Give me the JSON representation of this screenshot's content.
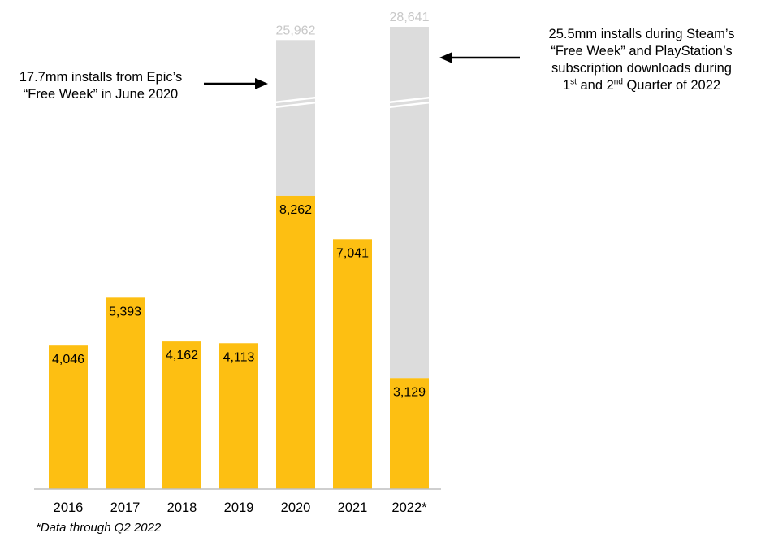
{
  "chart_data": {
    "type": "bar",
    "categories": [
      "2016",
      "2017",
      "2018",
      "2019",
      "2020",
      "2021",
      "2022*"
    ],
    "series": [
      {
        "values": [
          4046,
          5393,
          4162,
          4113,
          8262,
          7041,
          3129
        ]
      }
    ],
    "totals": [
      null,
      null,
      null,
      null,
      25962,
      null,
      28641
    ],
    "data_labels": [
      "4,046",
      "5,393",
      "4,162",
      "4,113",
      "8,262",
      "7,041",
      "3,129"
    ],
    "total_labels": [
      "",
      "",
      "",
      "",
      "25,962",
      "",
      "28,641"
    ],
    "axis_break": true,
    "grid": false,
    "legend": "none",
    "colors": {
      "base": "#FDBF12",
      "extra": "#DCDCDC",
      "total_label": "#C8C8C8",
      "axis": "#BFBFBF",
      "arrow": "#000000"
    },
    "annotations": [
      {
        "line1": "17.7mm installs from Epic’s",
        "line2": "“Free Week” in June 2020",
        "points_to": "2020"
      },
      {
        "line1": "25.5mm installs during Steam’s",
        "line2": "“Free Week” and PlayStation’s",
        "line3": "subscription downloads during",
        "line4_a": "1",
        "line4_sup1": "st",
        "line4_b": " and 2",
        "line4_sup2": "nd",
        "line4_c": " Quarter of 2022",
        "points_to": "2022*"
      }
    ],
    "footnote": "*Data through Q2 2022"
  }
}
